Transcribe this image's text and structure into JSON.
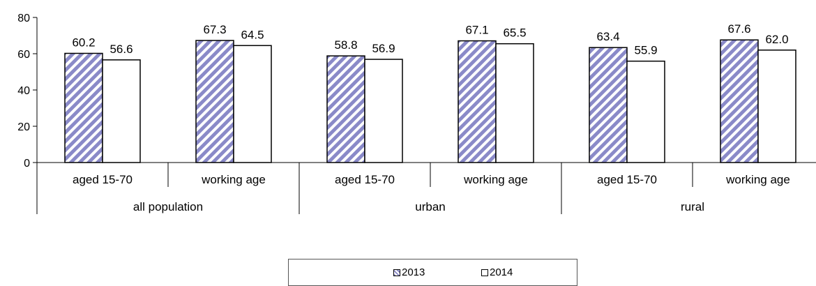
{
  "chart_data": {
    "type": "bar",
    "ylim": [
      0,
      80
    ],
    "yticks": [
      0,
      20,
      40,
      60,
      80
    ],
    "categories": [
      "aged 15-70",
      "working age",
      "aged 15-70",
      "working age",
      "aged 15-70",
      "working age"
    ],
    "groups": [
      {
        "label": "all population"
      },
      {
        "label": "urban"
      },
      {
        "label": "rural"
      }
    ],
    "series": [
      {
        "name": "2013",
        "values": [
          60.2,
          67.3,
          58.8,
          67.1,
          63.4,
          67.6
        ],
        "value_labels": [
          "60.2",
          "67.3",
          "58.8",
          "67.1",
          "63.4",
          "67.6"
        ],
        "color": "#8a8ac8",
        "pattern": "diagonal-stripes"
      },
      {
        "name": "2014",
        "values": [
          56.6,
          64.5,
          56.9,
          65.5,
          55.9,
          62.0
        ],
        "value_labels": [
          "56.6",
          "64.5",
          "56.9",
          "65.5",
          "55.9",
          "62.0"
        ],
        "color": "#ffffff",
        "pattern": "solid"
      }
    ],
    "grid": false,
    "legend_position": "bottom"
  }
}
